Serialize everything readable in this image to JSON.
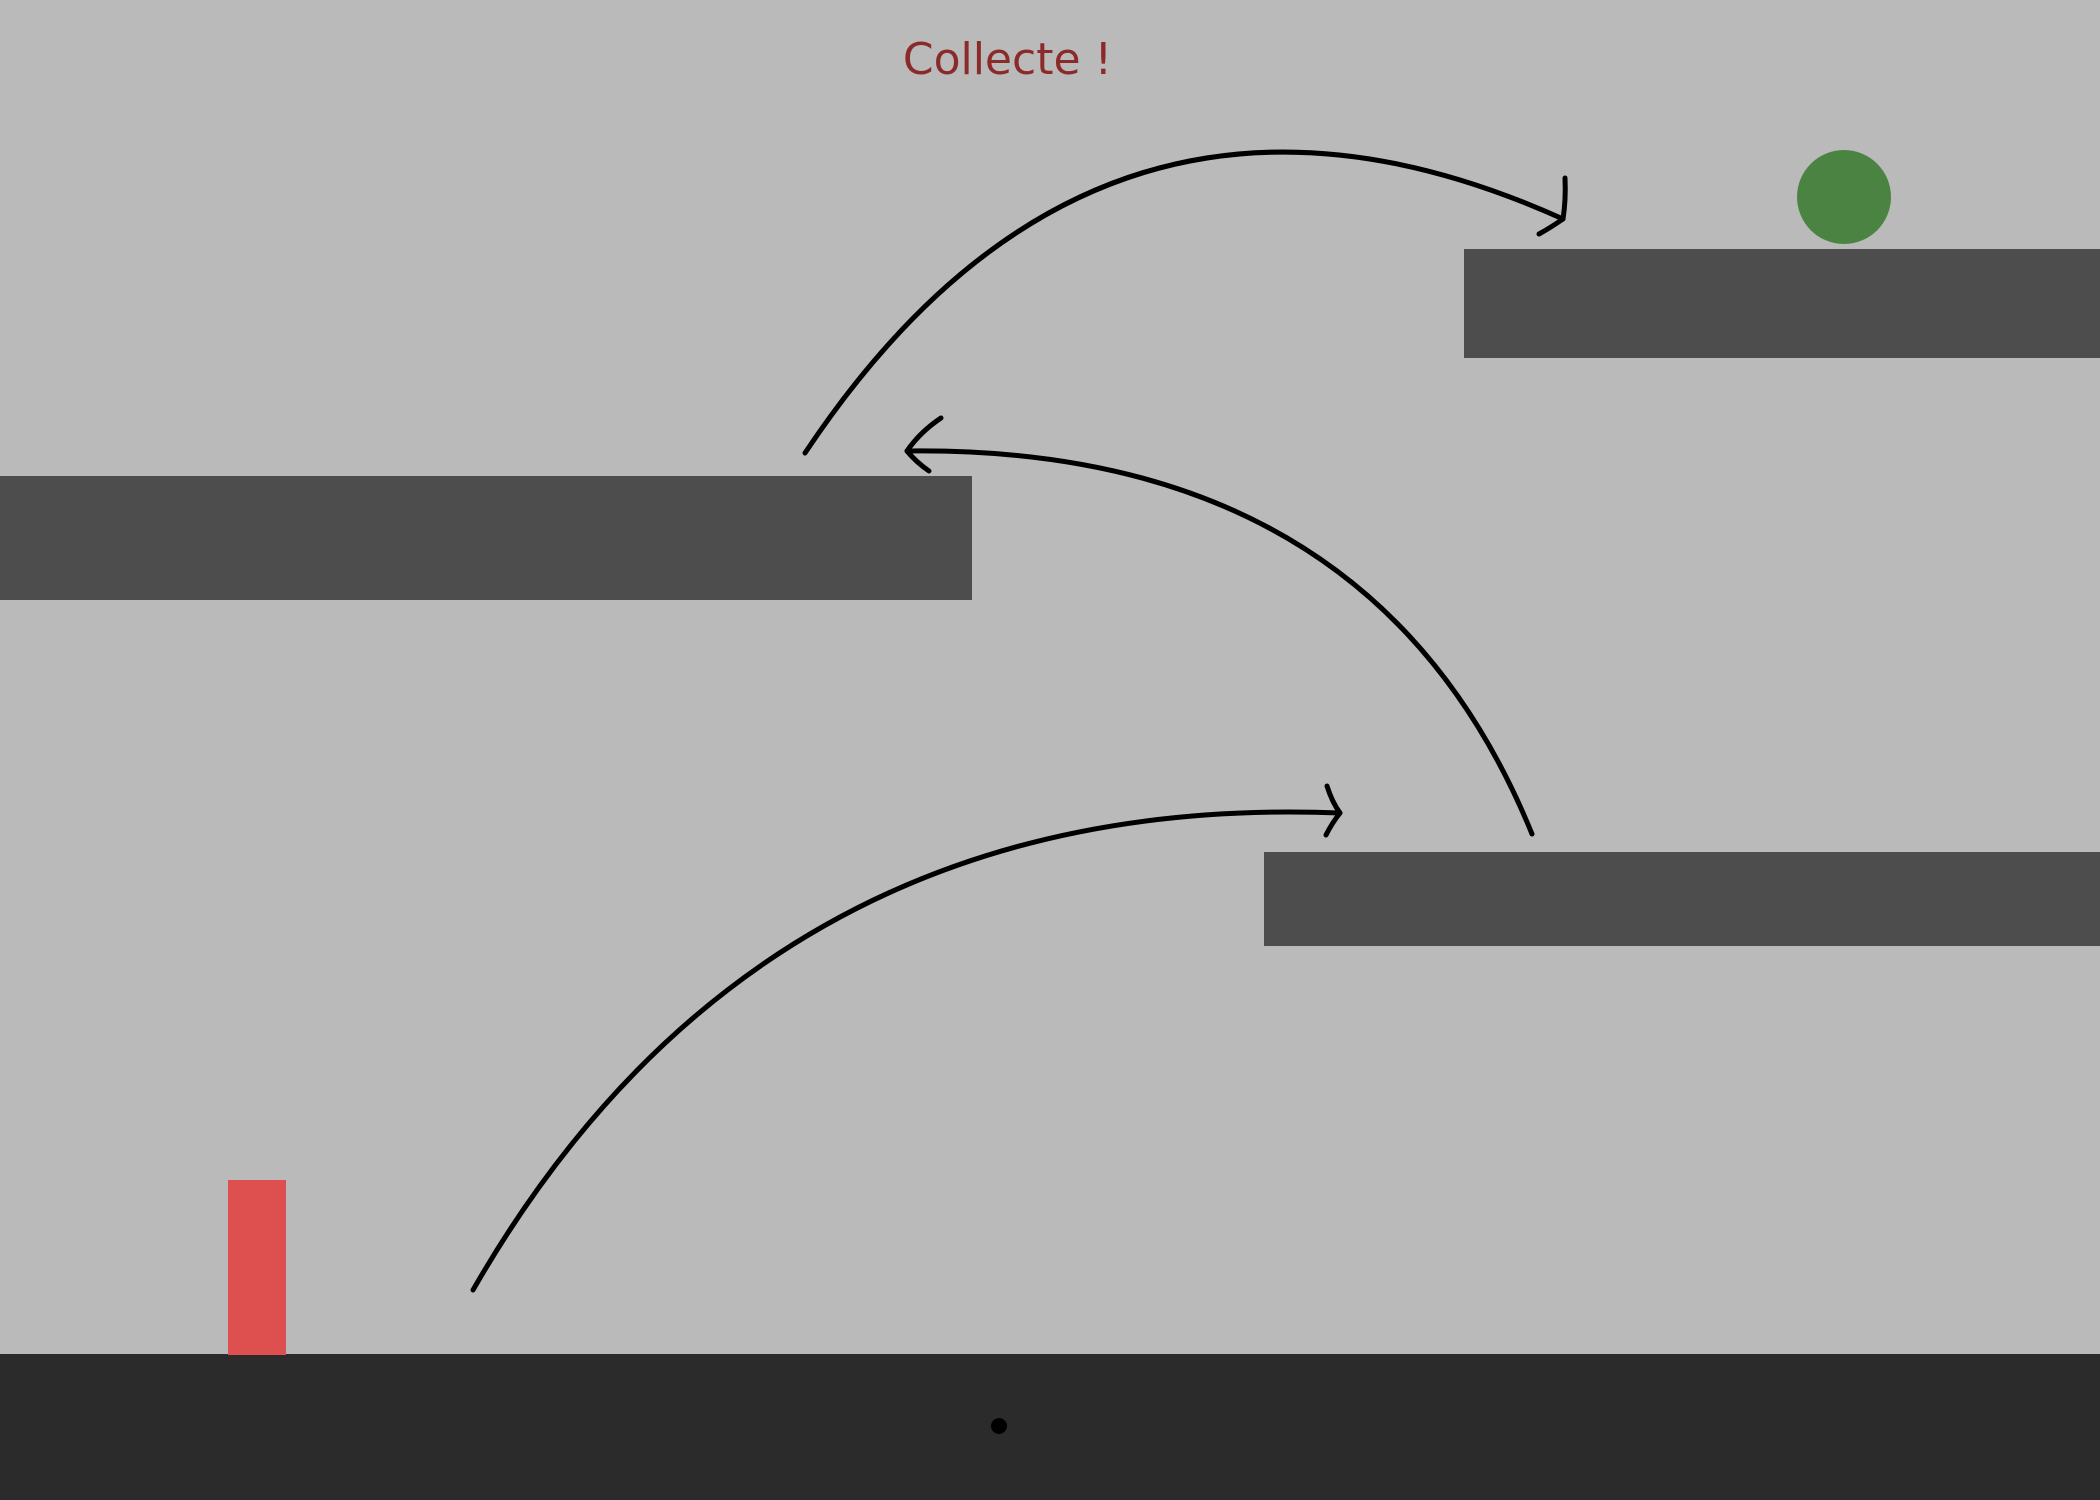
{
  "game": {
    "title": "Collecte !",
    "colors": {
      "background": "#bababa",
      "title": "#8b2a2a",
      "platform": "#4d4d4d",
      "ground": "#2b2b2b",
      "player": "#de4f4f",
      "goal": "#4b8442",
      "arrow": "#000000"
    },
    "player": {
      "shape": "rectangle",
      "icon": "player-block"
    },
    "goal": {
      "shape": "circle",
      "icon": "collectible-orb"
    },
    "guides": [
      {
        "name": "jump-1",
        "from": "ground",
        "to": "platform-right-low"
      },
      {
        "name": "jump-2",
        "from": "platform-right-low",
        "to": "platform-left"
      },
      {
        "name": "jump-3",
        "from": "platform-left",
        "to": "platform-right-high"
      }
    ]
  }
}
